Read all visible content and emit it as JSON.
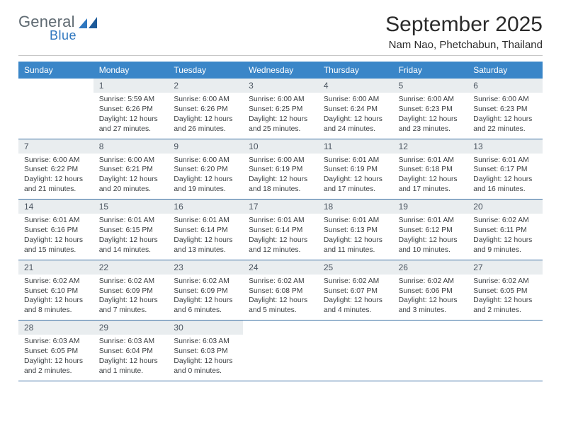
{
  "brand": {
    "word1": "General",
    "word2": "Blue"
  },
  "title": "September 2025",
  "location": "Nam Nao, Phetchabun, Thailand",
  "colors": {
    "header_bg": "#3a86c8",
    "header_text": "#ffffff",
    "daynum_bg": "#e9edef",
    "row_border": "#3a6fa3",
    "logo_gray": "#5f6a72",
    "logo_blue": "#2f77bf"
  },
  "weekday_labels": [
    "Sunday",
    "Monday",
    "Tuesday",
    "Wednesday",
    "Thursday",
    "Friday",
    "Saturday"
  ],
  "weeks": [
    [
      {
        "day": "",
        "sunrise": "",
        "sunset": "",
        "daylight": ""
      },
      {
        "day": "1",
        "sunrise": "Sunrise: 5:59 AM",
        "sunset": "Sunset: 6:26 PM",
        "daylight": "Daylight: 12 hours and 27 minutes."
      },
      {
        "day": "2",
        "sunrise": "Sunrise: 6:00 AM",
        "sunset": "Sunset: 6:26 PM",
        "daylight": "Daylight: 12 hours and 26 minutes."
      },
      {
        "day": "3",
        "sunrise": "Sunrise: 6:00 AM",
        "sunset": "Sunset: 6:25 PM",
        "daylight": "Daylight: 12 hours and 25 minutes."
      },
      {
        "day": "4",
        "sunrise": "Sunrise: 6:00 AM",
        "sunset": "Sunset: 6:24 PM",
        "daylight": "Daylight: 12 hours and 24 minutes."
      },
      {
        "day": "5",
        "sunrise": "Sunrise: 6:00 AM",
        "sunset": "Sunset: 6:23 PM",
        "daylight": "Daylight: 12 hours and 23 minutes."
      },
      {
        "day": "6",
        "sunrise": "Sunrise: 6:00 AM",
        "sunset": "Sunset: 6:23 PM",
        "daylight": "Daylight: 12 hours and 22 minutes."
      }
    ],
    [
      {
        "day": "7",
        "sunrise": "Sunrise: 6:00 AM",
        "sunset": "Sunset: 6:22 PM",
        "daylight": "Daylight: 12 hours and 21 minutes."
      },
      {
        "day": "8",
        "sunrise": "Sunrise: 6:00 AM",
        "sunset": "Sunset: 6:21 PM",
        "daylight": "Daylight: 12 hours and 20 minutes."
      },
      {
        "day": "9",
        "sunrise": "Sunrise: 6:00 AM",
        "sunset": "Sunset: 6:20 PM",
        "daylight": "Daylight: 12 hours and 19 minutes."
      },
      {
        "day": "10",
        "sunrise": "Sunrise: 6:00 AM",
        "sunset": "Sunset: 6:19 PM",
        "daylight": "Daylight: 12 hours and 18 minutes."
      },
      {
        "day": "11",
        "sunrise": "Sunrise: 6:01 AM",
        "sunset": "Sunset: 6:19 PM",
        "daylight": "Daylight: 12 hours and 17 minutes."
      },
      {
        "day": "12",
        "sunrise": "Sunrise: 6:01 AM",
        "sunset": "Sunset: 6:18 PM",
        "daylight": "Daylight: 12 hours and 17 minutes."
      },
      {
        "day": "13",
        "sunrise": "Sunrise: 6:01 AM",
        "sunset": "Sunset: 6:17 PM",
        "daylight": "Daylight: 12 hours and 16 minutes."
      }
    ],
    [
      {
        "day": "14",
        "sunrise": "Sunrise: 6:01 AM",
        "sunset": "Sunset: 6:16 PM",
        "daylight": "Daylight: 12 hours and 15 minutes."
      },
      {
        "day": "15",
        "sunrise": "Sunrise: 6:01 AM",
        "sunset": "Sunset: 6:15 PM",
        "daylight": "Daylight: 12 hours and 14 minutes."
      },
      {
        "day": "16",
        "sunrise": "Sunrise: 6:01 AM",
        "sunset": "Sunset: 6:14 PM",
        "daylight": "Daylight: 12 hours and 13 minutes."
      },
      {
        "day": "17",
        "sunrise": "Sunrise: 6:01 AM",
        "sunset": "Sunset: 6:14 PM",
        "daylight": "Daylight: 12 hours and 12 minutes."
      },
      {
        "day": "18",
        "sunrise": "Sunrise: 6:01 AM",
        "sunset": "Sunset: 6:13 PM",
        "daylight": "Daylight: 12 hours and 11 minutes."
      },
      {
        "day": "19",
        "sunrise": "Sunrise: 6:01 AM",
        "sunset": "Sunset: 6:12 PM",
        "daylight": "Daylight: 12 hours and 10 minutes."
      },
      {
        "day": "20",
        "sunrise": "Sunrise: 6:02 AM",
        "sunset": "Sunset: 6:11 PM",
        "daylight": "Daylight: 12 hours and 9 minutes."
      }
    ],
    [
      {
        "day": "21",
        "sunrise": "Sunrise: 6:02 AM",
        "sunset": "Sunset: 6:10 PM",
        "daylight": "Daylight: 12 hours and 8 minutes."
      },
      {
        "day": "22",
        "sunrise": "Sunrise: 6:02 AM",
        "sunset": "Sunset: 6:09 PM",
        "daylight": "Daylight: 12 hours and 7 minutes."
      },
      {
        "day": "23",
        "sunrise": "Sunrise: 6:02 AM",
        "sunset": "Sunset: 6:09 PM",
        "daylight": "Daylight: 12 hours and 6 minutes."
      },
      {
        "day": "24",
        "sunrise": "Sunrise: 6:02 AM",
        "sunset": "Sunset: 6:08 PM",
        "daylight": "Daylight: 12 hours and 5 minutes."
      },
      {
        "day": "25",
        "sunrise": "Sunrise: 6:02 AM",
        "sunset": "Sunset: 6:07 PM",
        "daylight": "Daylight: 12 hours and 4 minutes."
      },
      {
        "day": "26",
        "sunrise": "Sunrise: 6:02 AM",
        "sunset": "Sunset: 6:06 PM",
        "daylight": "Daylight: 12 hours and 3 minutes."
      },
      {
        "day": "27",
        "sunrise": "Sunrise: 6:02 AM",
        "sunset": "Sunset: 6:05 PM",
        "daylight": "Daylight: 12 hours and 2 minutes."
      }
    ],
    [
      {
        "day": "28",
        "sunrise": "Sunrise: 6:03 AM",
        "sunset": "Sunset: 6:05 PM",
        "daylight": "Daylight: 12 hours and 2 minutes."
      },
      {
        "day": "29",
        "sunrise": "Sunrise: 6:03 AM",
        "sunset": "Sunset: 6:04 PM",
        "daylight": "Daylight: 12 hours and 1 minute."
      },
      {
        "day": "30",
        "sunrise": "Sunrise: 6:03 AM",
        "sunset": "Sunset: 6:03 PM",
        "daylight": "Daylight: 12 hours and 0 minutes."
      },
      {
        "day": "",
        "sunrise": "",
        "sunset": "",
        "daylight": ""
      },
      {
        "day": "",
        "sunrise": "",
        "sunset": "",
        "daylight": ""
      },
      {
        "day": "",
        "sunrise": "",
        "sunset": "",
        "daylight": ""
      },
      {
        "day": "",
        "sunrise": "",
        "sunset": "",
        "daylight": ""
      }
    ]
  ]
}
